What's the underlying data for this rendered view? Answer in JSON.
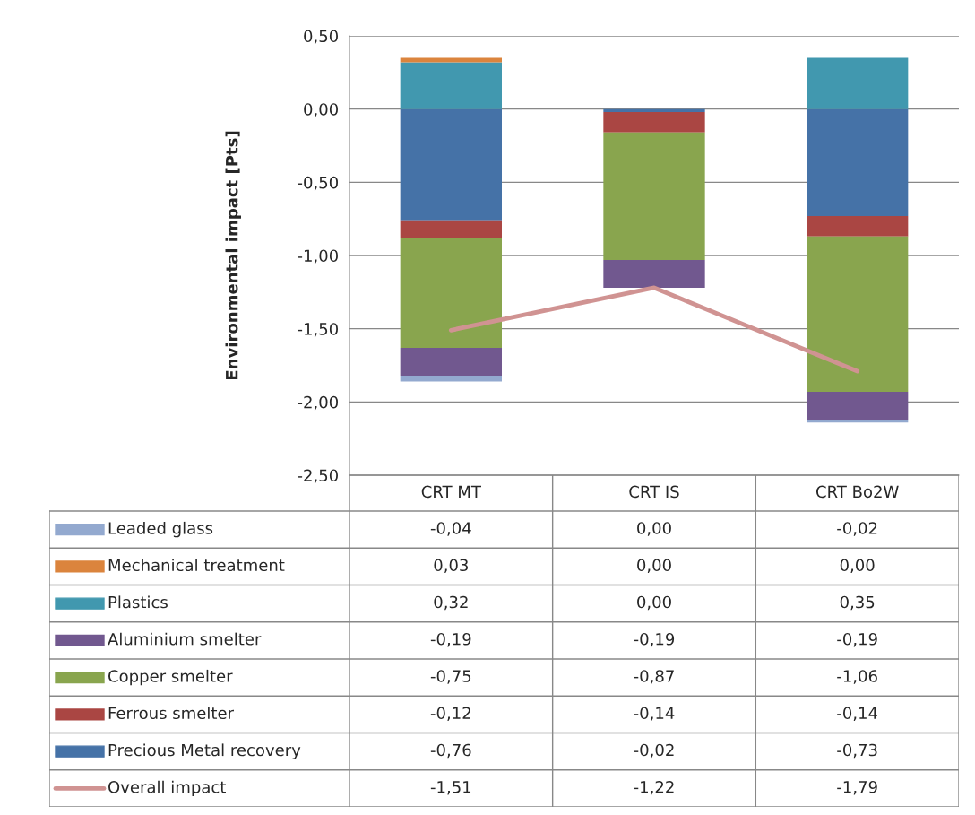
{
  "chart_data": {
    "type": "bar",
    "stacked": true,
    "ylabel": "Environmental impact [Pts]",
    "categories": [
      "CRT MT",
      "CRT IS",
      "CRT Bo2W"
    ],
    "series": [
      {
        "name": "Precious Metal recovery",
        "color": "#4572a7",
        "values": [
          -0.76,
          -0.02,
          -0.73
        ],
        "value_labels": [
          "-0,76",
          "-0,02",
          "-0,73"
        ]
      },
      {
        "name": "Ferrous smelter",
        "color": "#aa4643",
        "values": [
          -0.12,
          -0.14,
          -0.14
        ],
        "value_labels": [
          "-0,12",
          "-0,14",
          "-0,14"
        ]
      },
      {
        "name": "Copper smelter",
        "color": "#89a54e",
        "values": [
          -0.75,
          -0.87,
          -1.06
        ],
        "value_labels": [
          "-0,75",
          "-0,87",
          "-1,06"
        ]
      },
      {
        "name": "Aluminium smelter",
        "color": "#71588f",
        "values": [
          -0.19,
          -0.19,
          -0.19
        ],
        "value_labels": [
          "-0,19",
          "-0,19",
          "-0,19"
        ]
      },
      {
        "name": "Plastics",
        "color": "#4198af",
        "values": [
          0.32,
          0.0,
          0.35
        ],
        "value_labels": [
          "0,32",
          "0,00",
          "0,35"
        ]
      },
      {
        "name": "Mechanical treatment",
        "color": "#db843d",
        "values": [
          0.03,
          0.0,
          0.0
        ],
        "value_labels": [
          "0,03",
          "0,00",
          "0,00"
        ]
      },
      {
        "name": "Leaded glass",
        "color": "#93a9cf",
        "values": [
          -0.04,
          0.0,
          -0.02
        ],
        "value_labels": [
          "-0,04",
          "0,00",
          "-0,02"
        ]
      },
      {
        "name": "Overall impact",
        "type": "line",
        "color": "#d09392",
        "values": [
          -1.51,
          -1.22,
          -1.79
        ],
        "value_labels": [
          "-1,51",
          "-1,22",
          "-1,79"
        ]
      }
    ],
    "ylim": [
      -2.5,
      0.5
    ],
    "yticks": [
      {
        "value": 0.5,
        "label": "0,50"
      },
      {
        "value": 0.0,
        "label": "0,00"
      },
      {
        "value": -0.5,
        "label": "-0,50"
      },
      {
        "value": -1.0,
        "label": "-1,00"
      },
      {
        "value": -1.5,
        "label": "-1,50"
      },
      {
        "value": -2.0,
        "label": "-2,00"
      },
      {
        "value": -2.5,
        "label": "-2,50"
      }
    ],
    "grid": "y",
    "legend": "bottom",
    "line_style": "solid",
    "marker": "none"
  }
}
